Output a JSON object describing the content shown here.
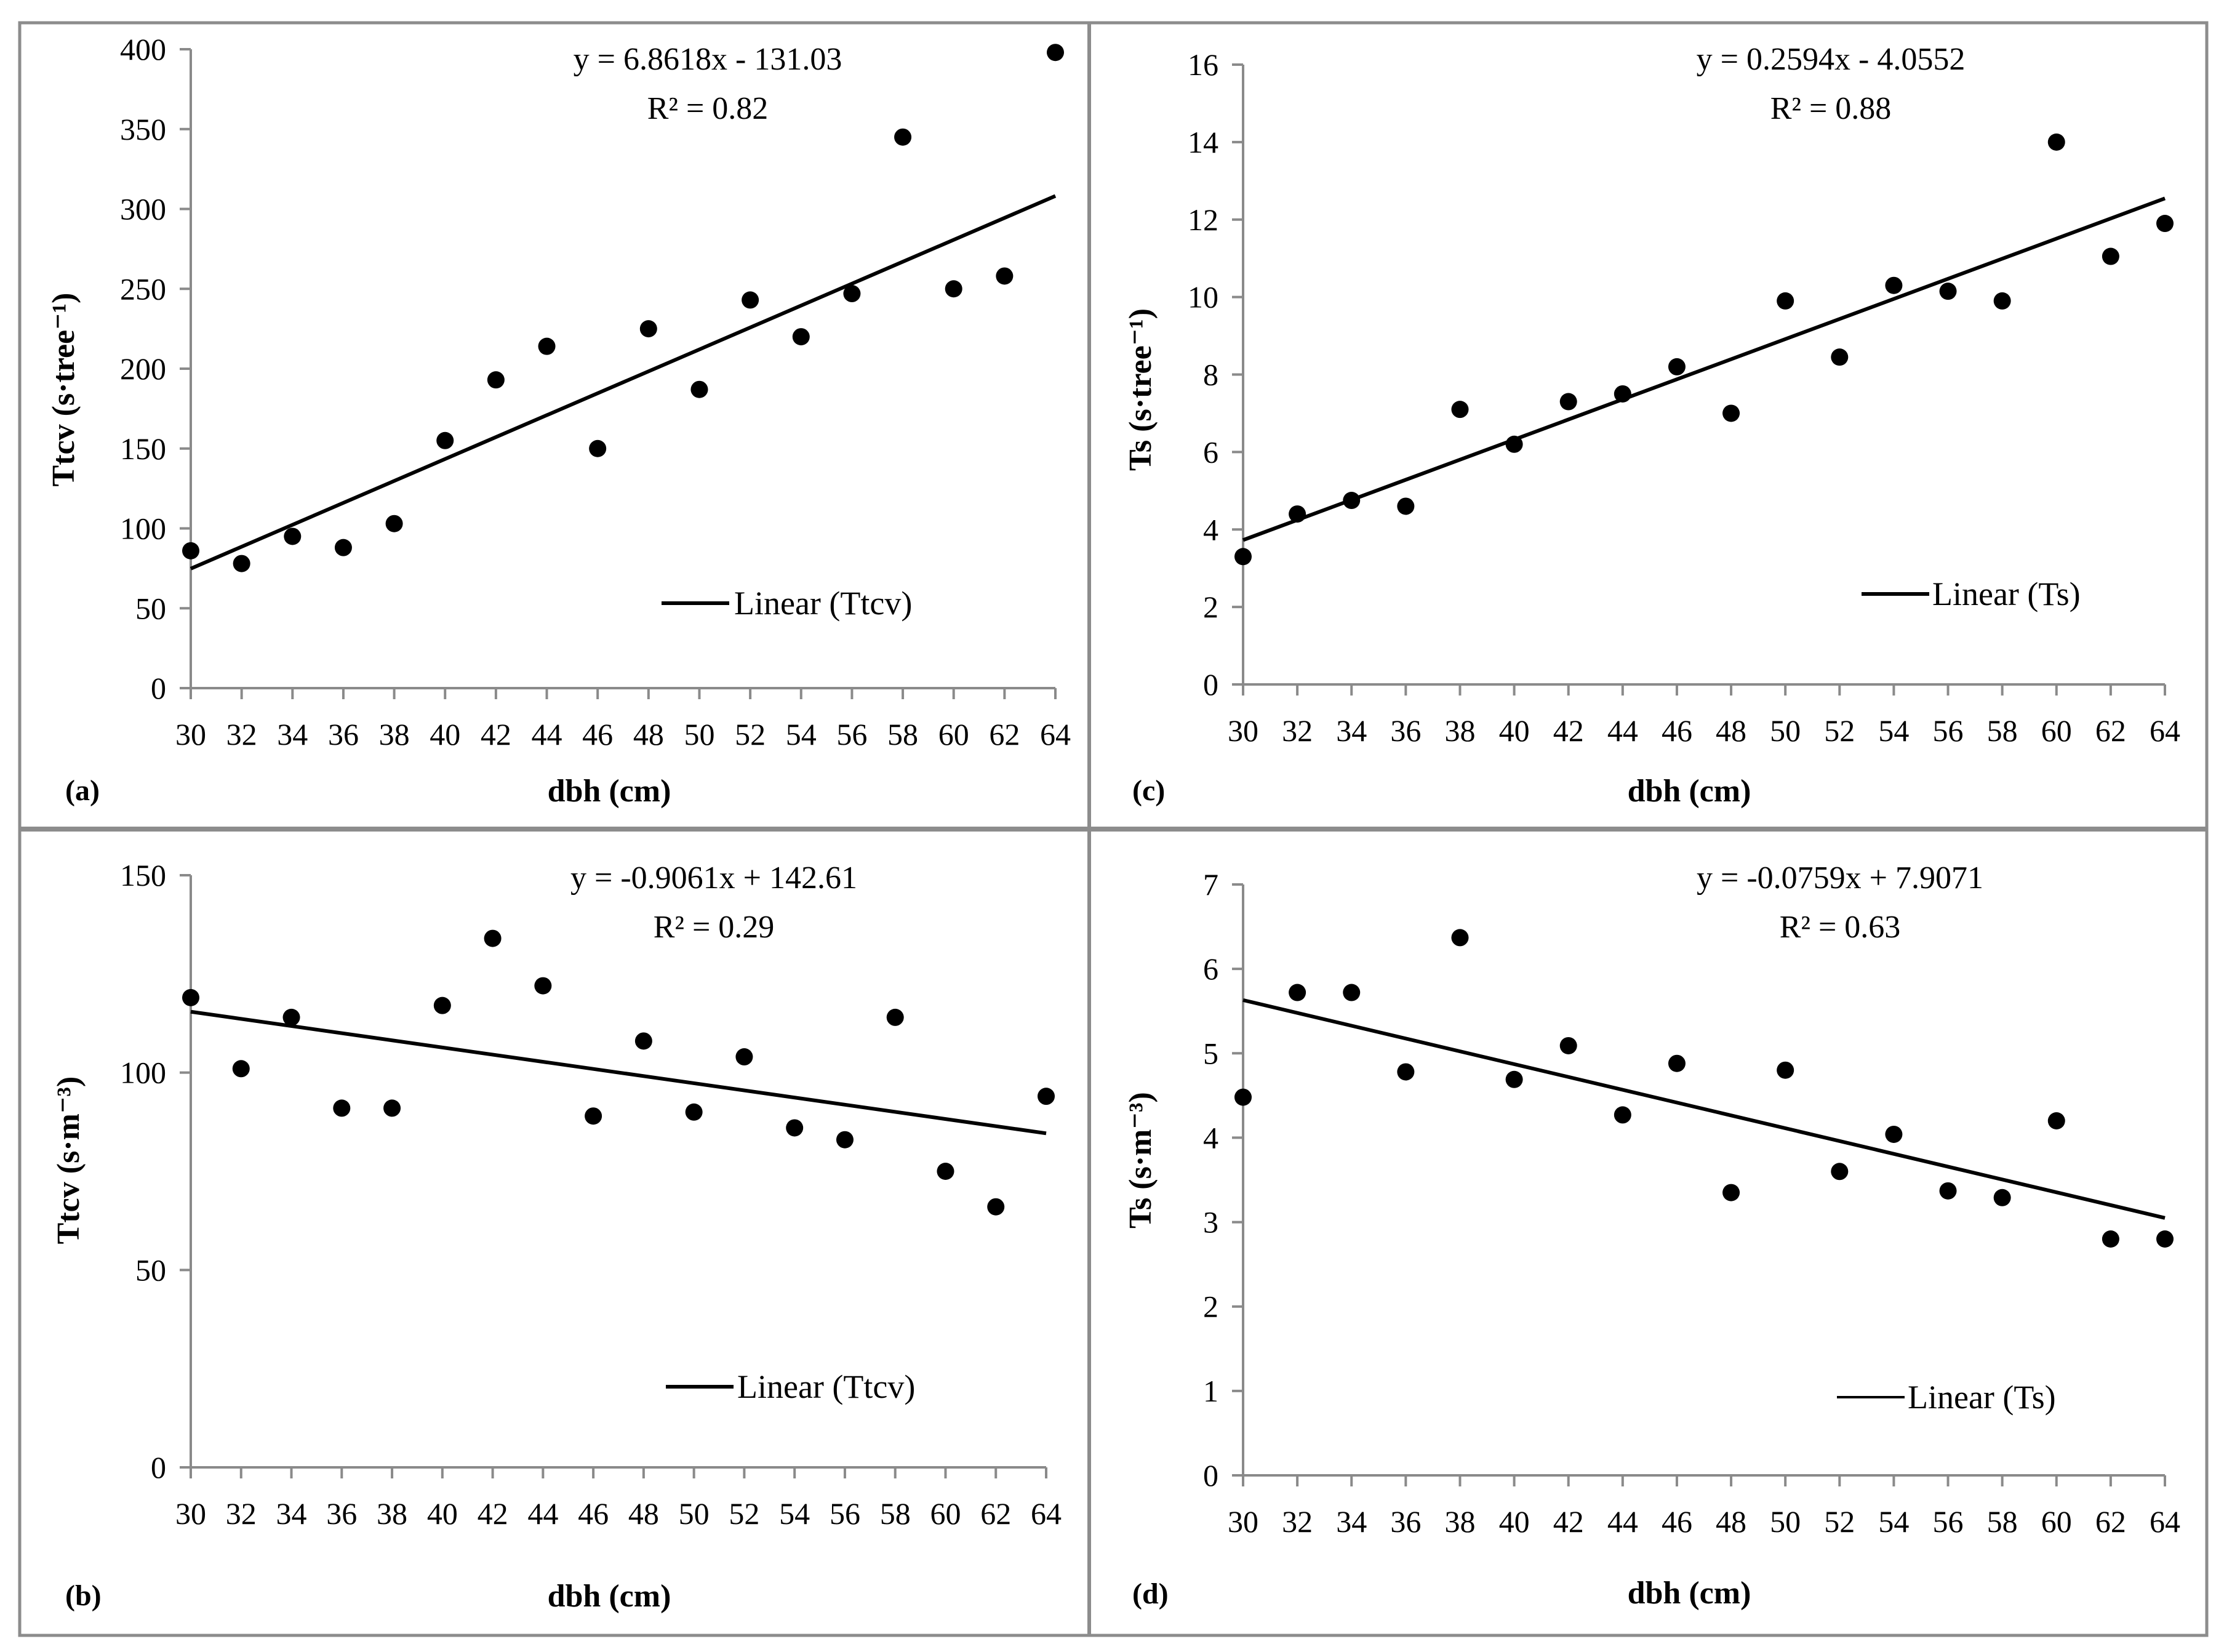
{
  "chart_data": [
    {
      "type": "scatter",
      "panel_label": "(a)",
      "x": [
        30,
        32,
        34,
        36,
        38,
        40,
        42,
        44,
        46,
        48,
        50,
        52,
        54,
        56,
        58,
        60,
        62,
        64
      ],
      "y": [
        86,
        78,
        95,
        88,
        103,
        155,
        193,
        214,
        150,
        225,
        187,
        243,
        220,
        247,
        345,
        250,
        258,
        398
      ],
      "trendline": {
        "slope": 6.8618,
        "intercept": -131.03,
        "equation": "y = 6.8618x - 131.03",
        "r2": "R² = 0.82"
      },
      "legend": "Linear (Ttcv)",
      "legend_position": "lower-right",
      "xlabel": "dbh (cm)",
      "ylabel": "Ttcv (s·tree⁻¹)",
      "xticks": [
        "30",
        "32",
        "34",
        "36",
        "38",
        "40",
        "42",
        "44",
        "46",
        "48",
        "50",
        "52",
        "54",
        "56",
        "58",
        "60",
        "62",
        "64"
      ],
      "xlim": [
        30,
        64
      ],
      "ylim": [
        0,
        400
      ],
      "yticks": [
        0,
        50,
        100,
        150,
        200,
        250,
        300,
        350,
        400
      ]
    },
    {
      "type": "scatter",
      "panel_label": "(c)",
      "x": [
        30,
        32,
        34,
        36,
        38,
        40,
        42,
        44,
        46,
        48,
        50,
        52,
        54,
        56,
        58,
        60,
        62,
        64
      ],
      "y": [
        3.3,
        4.4,
        4.75,
        4.6,
        7.1,
        6.2,
        7.3,
        7.5,
        8.2,
        7.0,
        9.9,
        8.45,
        10.3,
        10.15,
        9.9,
        14.0,
        11.05,
        11.9
      ],
      "trendline": {
        "slope": 0.2594,
        "intercept": -4.0552,
        "equation": "y = 0.2594x - 4.0552",
        "r2": "R² = 0.88"
      },
      "legend": "Linear (Ts)",
      "legend_position": "lower-right",
      "xlabel": "dbh (cm)",
      "ylabel": "Ts (s·tree⁻¹)",
      "xticks": [
        "30",
        "32",
        "34",
        "36",
        "38",
        "40",
        "42",
        "44",
        "46",
        "48",
        "50",
        "52",
        "54",
        "56",
        "58",
        "60",
        "62",
        "64"
      ],
      "xlim": [
        30,
        64
      ],
      "ylim": [
        0,
        16
      ],
      "yticks": [
        0,
        2,
        4,
        6,
        8,
        10,
        12,
        14,
        16
      ]
    },
    {
      "type": "scatter",
      "panel_label": "(b)",
      "x": [
        30,
        32,
        34,
        36,
        38,
        40,
        42,
        44,
        46,
        48,
        50,
        52,
        54,
        56,
        58,
        60,
        62,
        64
      ],
      "y": [
        119,
        101,
        114,
        91,
        91,
        117,
        134,
        122,
        89,
        108,
        90,
        104,
        86,
        83,
        114,
        75,
        66,
        94
      ],
      "trendline": {
        "slope": -0.9061,
        "intercept": 142.61,
        "equation": "y = -0.9061x + 142.61",
        "r2": "R² = 0.29"
      },
      "legend": "Linear (Ttcv)",
      "legend_position": "lower-right",
      "xlabel": "dbh (cm)",
      "ylabel": "Ttcv (s·m⁻³)",
      "xticks": [
        "30",
        "32",
        "34",
        "36",
        "38",
        "40",
        "42",
        "44",
        "46",
        "48",
        "50",
        "52",
        "54",
        "56",
        "58",
        "60",
        "62",
        "64"
      ],
      "xlim": [
        30,
        64
      ],
      "ylim": [
        0,
        150
      ],
      "yticks": [
        0,
        50,
        100,
        150
      ]
    },
    {
      "type": "scatter",
      "panel_label": "(d)",
      "x": [
        30,
        32,
        34,
        36,
        38,
        40,
        42,
        44,
        46,
        48,
        50,
        52,
        54,
        56,
        58,
        60,
        62,
        64
      ],
      "y": [
        4.48,
        5.72,
        5.72,
        4.78,
        6.37,
        4.69,
        5.09,
        4.27,
        4.88,
        3.35,
        4.8,
        3.6,
        4.04,
        3.37,
        3.29,
        4.2,
        2.8,
        2.8
      ],
      "trendline": {
        "slope": -0.0759,
        "intercept": 7.9071,
        "equation": "y = -0.0759x + 7.9071",
        "r2": "R² = 0.63"
      },
      "legend": "Linear (Ts)",
      "legend_position": "lower-right",
      "xlabel": "dbh (cm)",
      "ylabel": "Ts (s·m⁻³)",
      "xticks": [
        "30",
        "32",
        "34",
        "36",
        "38",
        "40",
        "42",
        "44",
        "46",
        "48",
        "50",
        "52",
        "54",
        "56",
        "58",
        "60",
        "62",
        "64"
      ],
      "xlim": [
        30,
        64
      ],
      "ylim": [
        0,
        7
      ],
      "yticks": [
        0,
        1,
        2,
        3,
        4,
        5,
        6,
        7
      ]
    }
  ]
}
